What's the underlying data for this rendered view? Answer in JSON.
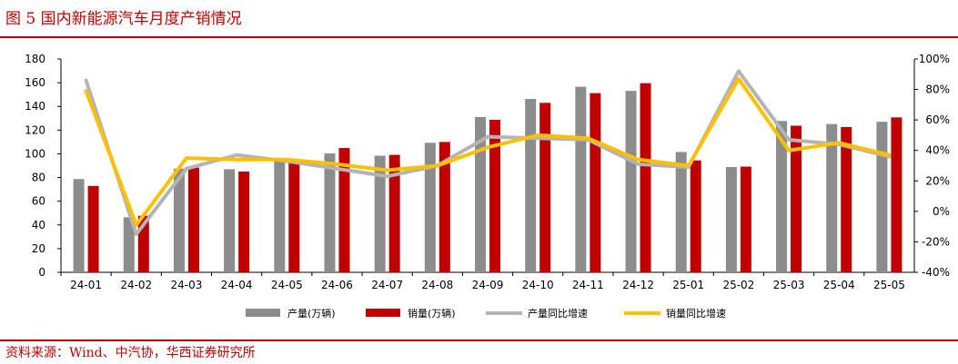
{
  "header": {
    "figure_title": "图 5  国内新能源汽车月度产销情况"
  },
  "footer": {
    "source": "资料来源：Wind、中汽协，华西证券研究所"
  },
  "colors": {
    "accent": "#c00000",
    "production_bar": "#8c8c8c",
    "sales_bar": "#c00000",
    "production_yoy": "#b4b4b4",
    "sales_yoy": "#ffc000"
  },
  "chart_data": {
    "type": "bar",
    "categories": [
      "24-01",
      "24-02",
      "24-03",
      "24-04",
      "24-05",
      "24-06",
      "24-07",
      "24-08",
      "24-09",
      "24-10",
      "24-11",
      "24-12",
      "25-01",
      "25-02",
      "25-03",
      "25-04",
      "25-05"
    ],
    "series": [
      {
        "name": "产量(万辆)",
        "type": "bar",
        "axis": "left",
        "values": [
          78.7,
          46.5,
          87.5,
          87.0,
          95.7,
          100.3,
          98.4,
          109.3,
          131.0,
          146.3,
          156.6,
          153.1,
          101.5,
          88.8,
          127.7,
          125.1,
          127.0
        ]
      },
      {
        "name": "销量(万辆)",
        "type": "bar",
        "axis": "left",
        "values": [
          72.9,
          47.7,
          88.3,
          85.0,
          95.5,
          104.9,
          99.1,
          110.0,
          128.7,
          143.0,
          151.2,
          159.6,
          94.4,
          89.2,
          123.7,
          122.6,
          130.7
        ]
      },
      {
        "name": "产量同比增速",
        "type": "line",
        "axis": "right",
        "values": [
          86,
          -15,
          28,
          37,
          33,
          28,
          23,
          30,
          49,
          48,
          47,
          31,
          29,
          92,
          47,
          44,
          36
        ]
      },
      {
        "name": "销量同比增速",
        "type": "line",
        "axis": "right",
        "values": [
          79,
          -9,
          35,
          34,
          34,
          31,
          27,
          30,
          42,
          50,
          48,
          34,
          30,
          87,
          40,
          45,
          37
        ]
      }
    ],
    "y_left": {
      "min": 0,
      "max": 180,
      "ticks": [
        "0",
        "20",
        "40",
        "60",
        "80",
        "100",
        "120",
        "140",
        "160",
        "180"
      ]
    },
    "y_right": {
      "min": -40,
      "max": 100,
      "ticks": [
        "-40%",
        "-20%",
        "0%",
        "20%",
        "40%",
        "60%",
        "80%",
        "100%"
      ]
    },
    "legend_position": "bottom",
    "grid": false
  }
}
